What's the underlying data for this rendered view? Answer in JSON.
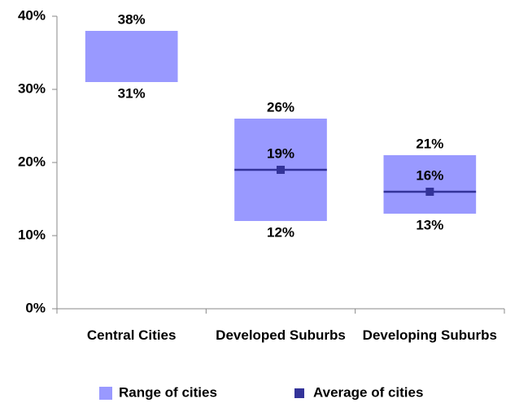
{
  "chart_data": {
    "type": "range",
    "categories": [
      "Central Cities",
      "Developed Suburbs",
      "Developing Suburbs"
    ],
    "series": [
      {
        "name": "Range of cities",
        "color": "#9999ff",
        "low": [
          31,
          12,
          13
        ],
        "high": [
          38,
          26,
          21
        ],
        "low_labels": [
          "31%",
          "12%",
          "13%"
        ],
        "high_labels": [
          "38%",
          "26%",
          "21%"
        ]
      },
      {
        "name": "Average of cities",
        "color": "#333399",
        "values": [
          null,
          19,
          16
        ],
        "value_labels": [
          null,
          "19%",
          "16%"
        ]
      }
    ],
    "ylim": [
      0,
      40
    ],
    "yticks": [
      {
        "value": 0,
        "label": "0%"
      },
      {
        "value": 10,
        "label": "10%"
      },
      {
        "value": 20,
        "label": "20%"
      },
      {
        "value": 30,
        "label": "30%"
      },
      {
        "value": 40,
        "label": "40%"
      }
    ],
    "legend": "bottom"
  }
}
